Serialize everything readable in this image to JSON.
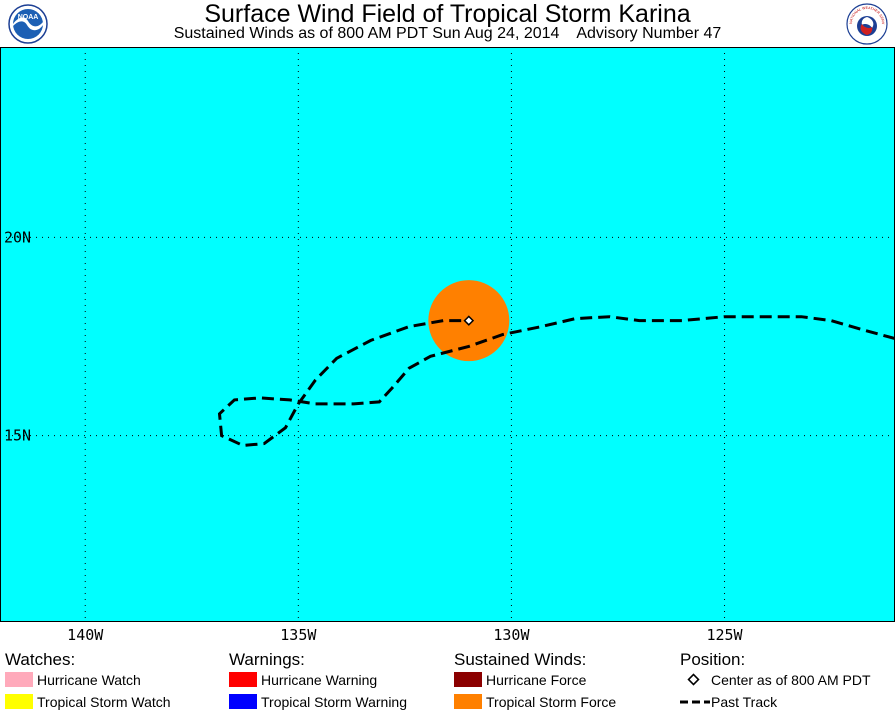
{
  "header": {
    "title": "Surface Wind Field of Tropical Storm Karina",
    "subtitle": "Sustained Winds as of 800 AM PDT Sun Aug 24, 2014    Advisory Number 47",
    "logo_left": "NOAA",
    "logo_right": "NATIONAL WEATHER SERVICE"
  },
  "map": {
    "ocean_color": "#00ffff",
    "grid_color": "#000000",
    "lon_range": [
      -142.0,
      -121.0
    ],
    "lat_range": [
      10.3,
      24.8
    ],
    "longitude_labels": [
      {
        "lon": -140,
        "text": "140W"
      },
      {
        "lon": -135,
        "text": "135W"
      },
      {
        "lon": -130,
        "text": "130W"
      },
      {
        "lon": -125,
        "text": "125W"
      }
    ],
    "latitude_labels": [
      {
        "lat": 20,
        "text": "20N"
      },
      {
        "lat": 15,
        "text": "15N"
      }
    ],
    "storm_center": {
      "lon": -131.0,
      "lat": 17.9
    },
    "tropical_storm_wind_radius_deg": 0.95,
    "past_track": [
      [
        -121.0,
        17.45
      ],
      [
        -121.7,
        17.65
      ],
      [
        -122.5,
        17.9
      ],
      [
        -123.2,
        18.0
      ],
      [
        -124.0,
        18.0
      ],
      [
        -125.0,
        18.0
      ],
      [
        -126.0,
        17.9
      ],
      [
        -127.0,
        17.9
      ],
      [
        -127.7,
        18.0
      ],
      [
        -128.5,
        17.95
      ],
      [
        -129.3,
        17.75
      ],
      [
        -130.2,
        17.55
      ],
      [
        -131.0,
        17.25
      ],
      [
        -131.9,
        17.0
      ],
      [
        -132.4,
        16.7
      ],
      [
        -132.8,
        16.2
      ],
      [
        -133.1,
        15.85
      ],
      [
        -133.7,
        15.8
      ],
      [
        -134.6,
        15.8
      ],
      [
        -135.2,
        15.9
      ],
      [
        -135.9,
        15.95
      ],
      [
        -136.5,
        15.9
      ],
      [
        -136.85,
        15.55
      ],
      [
        -136.8,
        15.0
      ],
      [
        -136.3,
        14.75
      ],
      [
        -135.8,
        14.8
      ],
      [
        -135.3,
        15.2
      ],
      [
        -135.0,
        15.8
      ],
      [
        -134.6,
        16.4
      ],
      [
        -134.1,
        16.95
      ],
      [
        -133.3,
        17.4
      ],
      [
        -132.4,
        17.75
      ],
      [
        -131.6,
        17.9
      ],
      [
        -131.0,
        17.9
      ]
    ]
  },
  "legend": {
    "watches": {
      "heading": "Watches:",
      "items": [
        {
          "label": "Hurricane Watch",
          "color": "#ffaabb"
        },
        {
          "label": "Tropical Storm Watch",
          "color": "#ffff00"
        }
      ]
    },
    "warnings": {
      "heading": "Warnings:",
      "items": [
        {
          "label": "Hurricane Warning",
          "color": "#ff0000"
        },
        {
          "label": "Tropical Storm Warning",
          "color": "#0000ff"
        }
      ]
    },
    "winds": {
      "heading": "Sustained Winds:",
      "items": [
        {
          "label": "Hurricane Force",
          "color": "#8b0000"
        },
        {
          "label": "Tropical Storm Force",
          "color": "#ff8000"
        }
      ]
    },
    "position": {
      "heading": "Position:",
      "center_label": "Center as of 800 AM PDT",
      "track_label": "Past Track"
    }
  }
}
